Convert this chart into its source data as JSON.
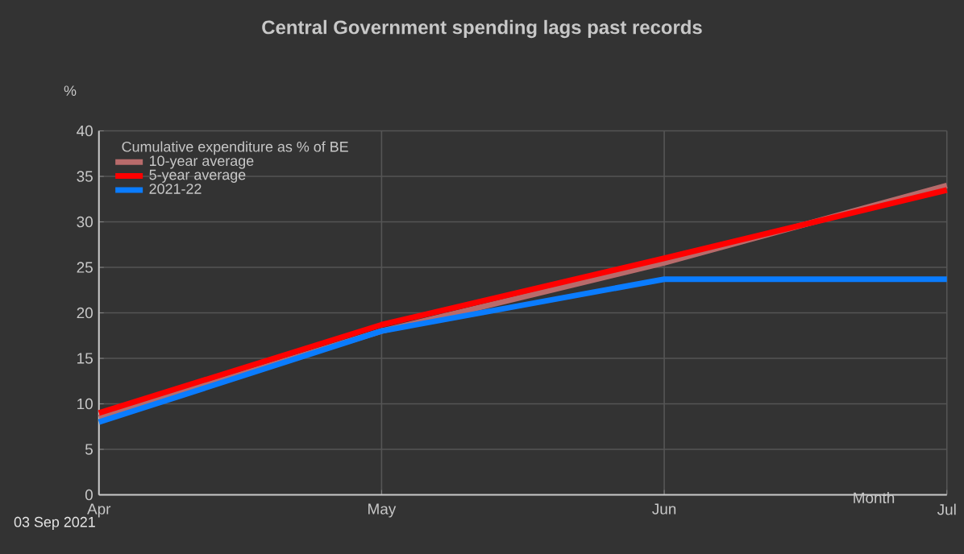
{
  "chart_data": {
    "type": "line",
    "title": "Central Government spending lags past records",
    "xlabel": "Month",
    "ylabel": "%",
    "legend_title": "Cumulative expenditure as % of BE",
    "categories": [
      "Apr",
      "May",
      "Jun",
      "Jul"
    ],
    "series": [
      {
        "name": "10-year average",
        "color": "#b86b6b",
        "values": [
          8.5,
          18,
          25.5,
          34
        ]
      },
      {
        "name": "5-year average",
        "color": "#ff0000",
        "values": [
          9,
          18.7,
          26,
          33.5
        ]
      },
      {
        "name": "2021-22",
        "color": "#0a7cff",
        "values": [
          8,
          18,
          23.7,
          23.7
        ]
      }
    ],
    "ylim": [
      0,
      40
    ],
    "yticks": [
      0,
      5,
      10,
      15,
      20,
      25,
      30,
      35,
      40
    ],
    "grid": true,
    "legend": "top left",
    "marker": "none",
    "line_style": "solid",
    "annotations": [
      "03 Sep 2021"
    ]
  }
}
